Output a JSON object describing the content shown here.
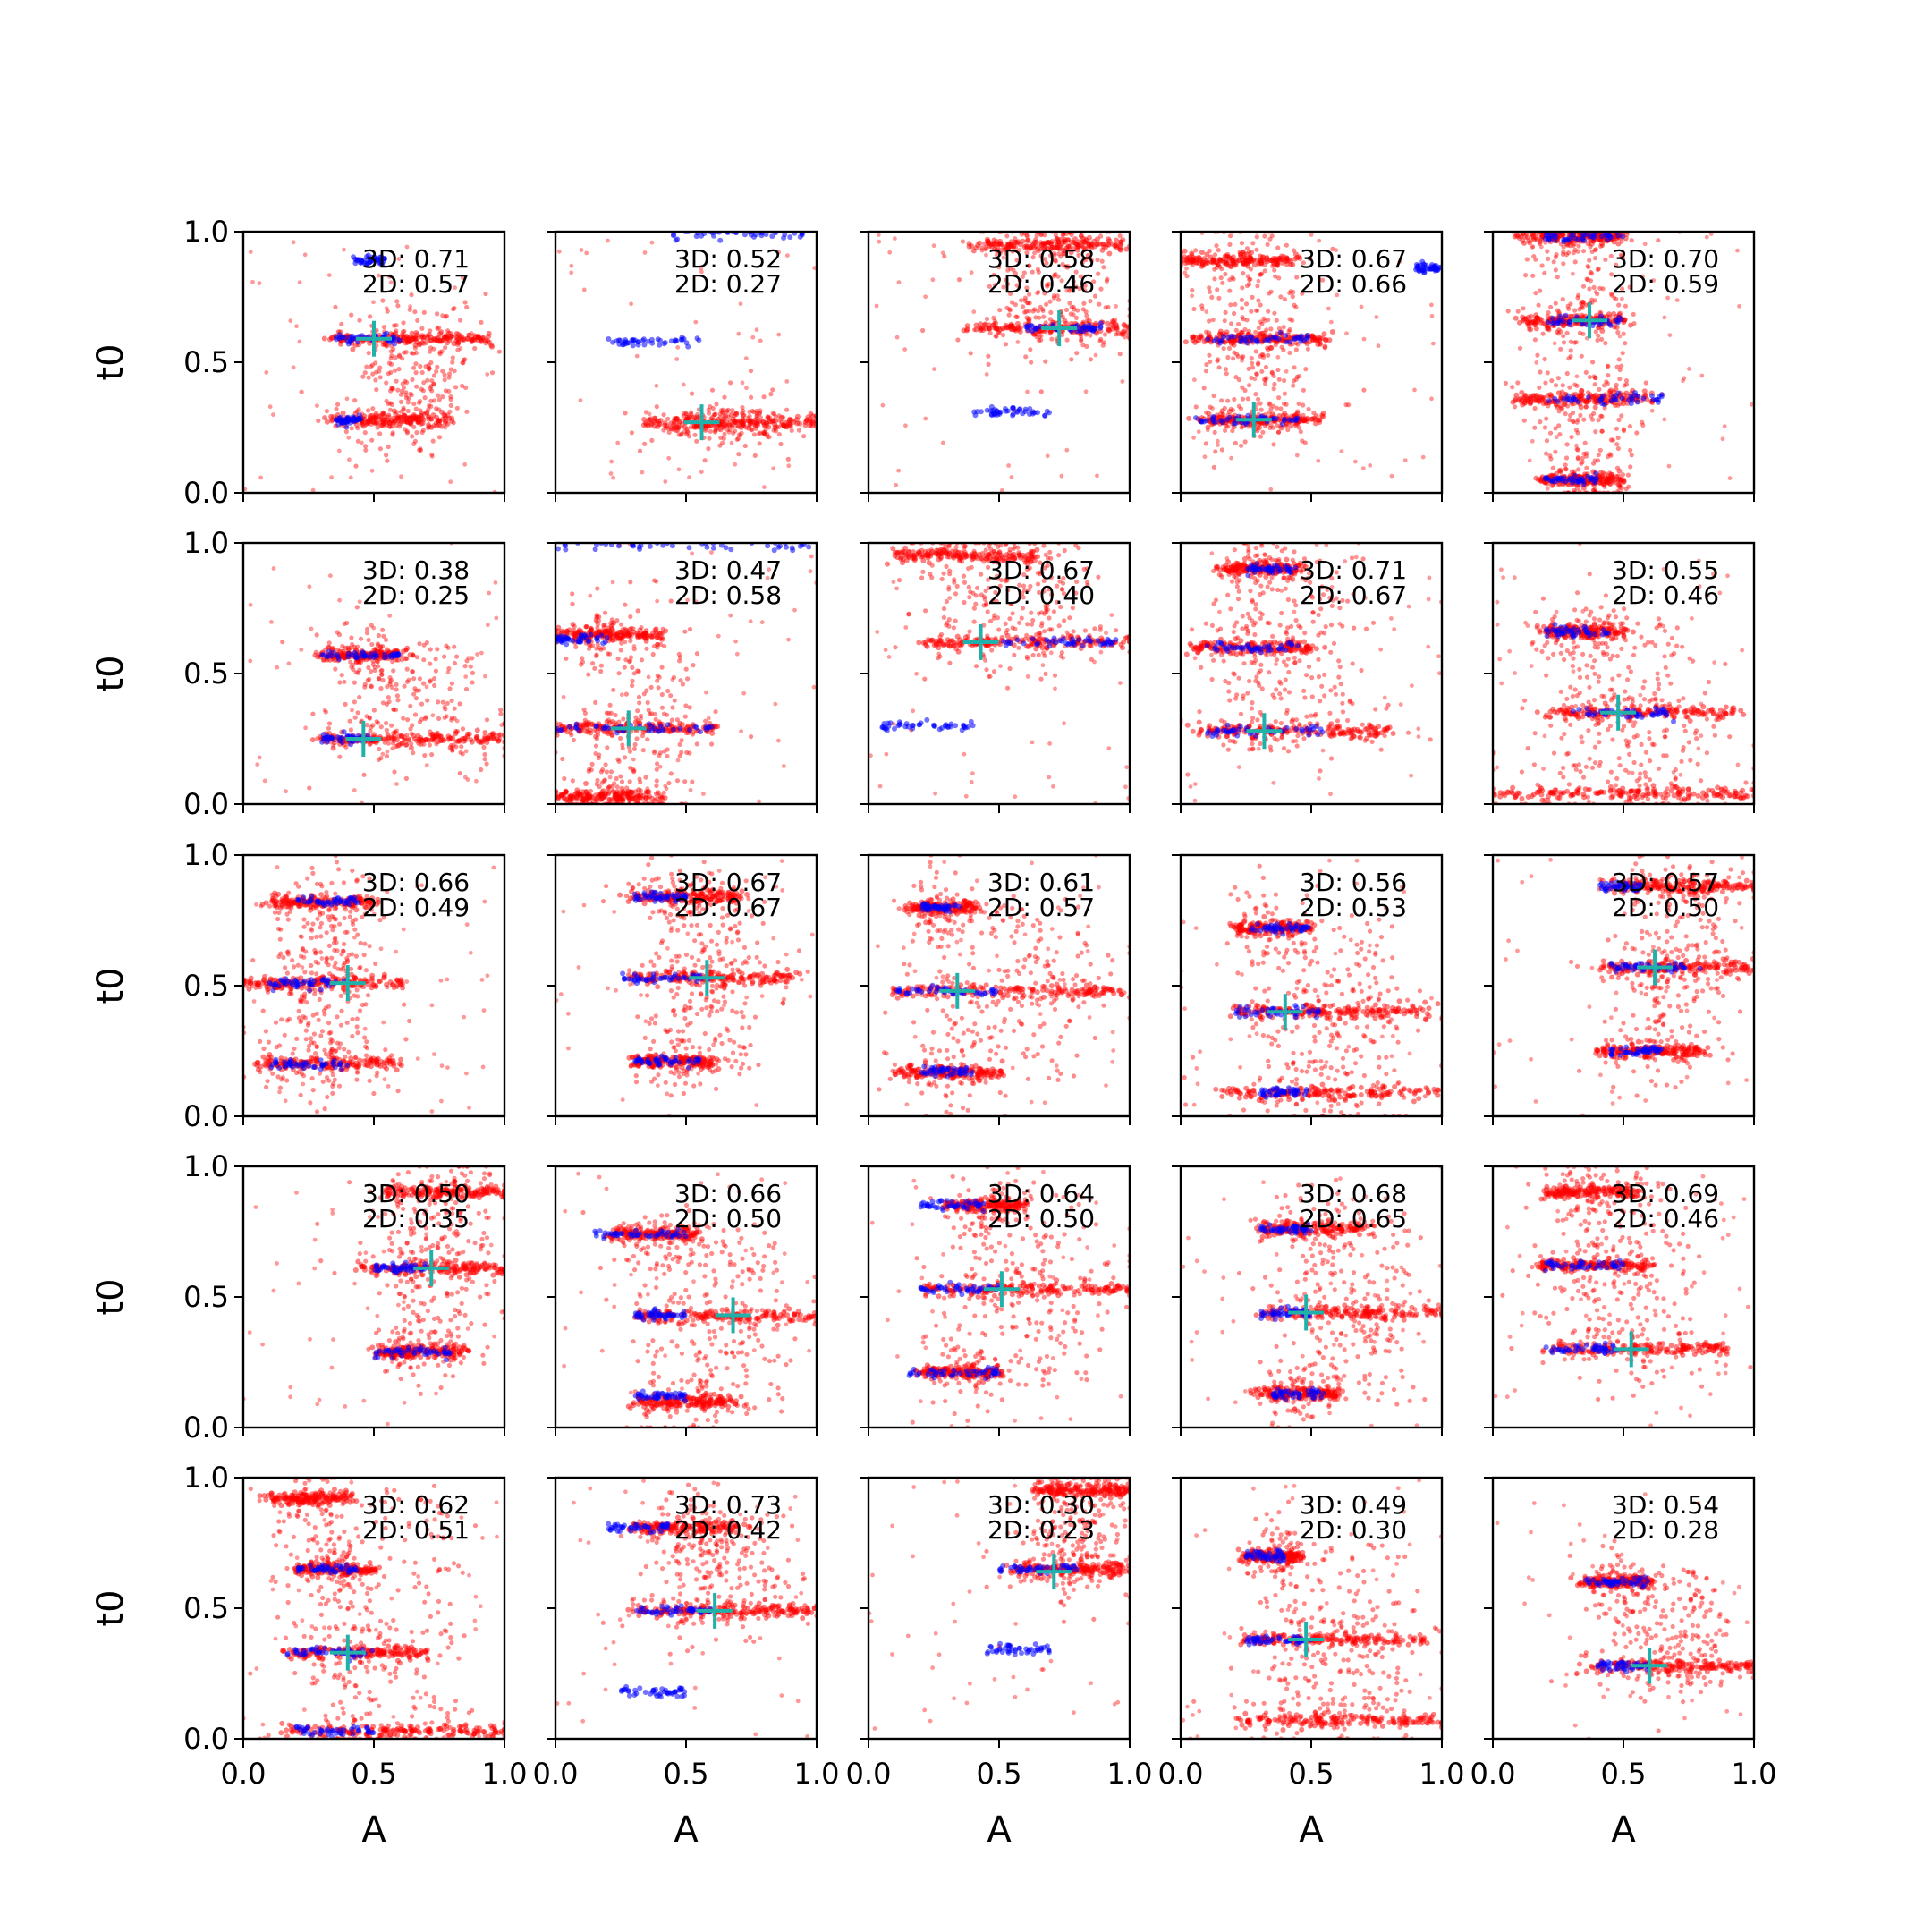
{
  "figure": {
    "xlabel": "A",
    "ylabel": "t0",
    "xlim": [
      0,
      1
    ],
    "ylim": [
      0,
      1
    ],
    "x_ticks": [
      "0.0",
      "0.5",
      "1.0"
    ],
    "y_ticks": [
      "0.0",
      "0.5",
      "1.0"
    ],
    "colors": {
      "red_points": "#ff0000",
      "blue_points": "#0000ff",
      "marker": "#20b2aa"
    }
  },
  "chart_data": [
    {
      "type": "scatter",
      "row": 0,
      "col": 0,
      "annot_3d": "3D: 0.71",
      "annot_2d": "2D: 0.57",
      "marker": {
        "x": 0.5,
        "y": 0.59
      },
      "red_bands": [
        {
          "y": 0.59,
          "x0": 0.35,
          "x1": 0.95
        },
        {
          "y": 0.28,
          "x0": 0.35,
          "x1": 0.8
        }
      ],
      "blue_bands": [
        {
          "y": 0.89,
          "x0": 0.42,
          "x1": 0.55
        },
        {
          "y": 0.59,
          "x0": 0.35,
          "x1": 0.6
        },
        {
          "y": 0.28,
          "x0": 0.35,
          "x1": 0.45
        }
      ]
    },
    {
      "type": "scatter",
      "row": 0,
      "col": 1,
      "annot_3d": "3D: 0.52",
      "annot_2d": "2D: 0.27",
      "marker": {
        "x": 0.56,
        "y": 0.27
      },
      "red_bands": [
        {
          "y": 0.27,
          "x0": 0.35,
          "x1": 1.0
        }
      ],
      "blue_bands": [
        {
          "y": 0.58,
          "x0": 0.2,
          "x1": 0.55
        },
        {
          "y": 0.99,
          "x0": 0.45,
          "x1": 0.98
        }
      ]
    },
    {
      "type": "scatter",
      "row": 0,
      "col": 2,
      "annot_3d": "3D: 0.58",
      "annot_2d": "2D: 0.46",
      "marker": {
        "x": 0.73,
        "y": 0.63
      },
      "red_bands": [
        {
          "y": 0.63,
          "x0": 0.4,
          "x1": 1.0
        },
        {
          "y": 0.95,
          "x0": 0.4,
          "x1": 1.0
        }
      ],
      "blue_bands": [
        {
          "y": 0.31,
          "x0": 0.4,
          "x1": 0.7
        },
        {
          "y": 0.63,
          "x0": 0.6,
          "x1": 0.9
        }
      ]
    },
    {
      "type": "scatter",
      "row": 0,
      "col": 3,
      "annot_3d": "3D: 0.67",
      "annot_2d": "2D: 0.66",
      "marker": {
        "x": 0.28,
        "y": 0.28
      },
      "red_bands": [
        {
          "y": 0.89,
          "x0": 0.0,
          "x1": 0.45
        },
        {
          "y": 0.59,
          "x0": 0.05,
          "x1": 0.55
        },
        {
          "y": 0.28,
          "x0": 0.05,
          "x1": 0.55
        }
      ],
      "blue_bands": [
        {
          "y": 0.59,
          "x0": 0.1,
          "x1": 0.5
        },
        {
          "y": 0.28,
          "x0": 0.05,
          "x1": 0.45
        },
        {
          "y": 0.86,
          "x0": 0.9,
          "x1": 1.0
        }
      ]
    },
    {
      "type": "scatter",
      "row": 0,
      "col": 4,
      "annot_3d": "3D: 0.70",
      "annot_2d": "2D: 0.59",
      "marker": {
        "x": 0.37,
        "y": 0.66
      },
      "red_bands": [
        {
          "y": 0.98,
          "x0": 0.1,
          "x1": 0.5
        },
        {
          "y": 0.66,
          "x0": 0.1,
          "x1": 0.5
        },
        {
          "y": 0.36,
          "x0": 0.1,
          "x1": 0.6
        },
        {
          "y": 0.05,
          "x0": 0.2,
          "x1": 0.5
        }
      ],
      "blue_bands": [
        {
          "y": 0.98,
          "x0": 0.2,
          "x1": 0.5
        },
        {
          "y": 0.66,
          "x0": 0.2,
          "x1": 0.5
        },
        {
          "y": 0.36,
          "x0": 0.2,
          "x1": 0.65
        },
        {
          "y": 0.05,
          "x0": 0.2,
          "x1": 0.4
        }
      ]
    },
    {
      "type": "scatter",
      "row": 1,
      "col": 0,
      "annot_3d": "3D: 0.38",
      "annot_2d": "2D: 0.25",
      "marker": {
        "x": 0.46,
        "y": 0.25
      },
      "red_bands": [
        {
          "y": 0.25,
          "x0": 0.3,
          "x1": 1.0
        },
        {
          "y": 0.57,
          "x0": 0.3,
          "x1": 0.6
        }
      ],
      "blue_bands": [
        {
          "y": 0.57,
          "x0": 0.3,
          "x1": 0.6
        },
        {
          "y": 0.25,
          "x0": 0.3,
          "x1": 0.5
        }
      ]
    },
    {
      "type": "scatter",
      "row": 1,
      "col": 1,
      "annot_3d": "3D: 0.47",
      "annot_2d": "2D: 0.58",
      "marker": {
        "x": 0.28,
        "y": 0.29
      },
      "red_bands": [
        {
          "y": 0.29,
          "x0": 0.0,
          "x1": 0.6
        },
        {
          "y": 0.03,
          "x0": 0.0,
          "x1": 0.4
        },
        {
          "y": 0.65,
          "x0": 0.0,
          "x1": 0.4
        }
      ],
      "blue_bands": [
        {
          "y": 0.99,
          "x0": 0.0,
          "x1": 1.0
        },
        {
          "y": 0.29,
          "x0": 0.0,
          "x1": 0.6
        },
        {
          "y": 0.63,
          "x0": 0.0,
          "x1": 0.2
        }
      ]
    },
    {
      "type": "scatter",
      "row": 1,
      "col": 2,
      "annot_3d": "3D: 0.67",
      "annot_2d": "2D: 0.40",
      "marker": {
        "x": 0.43,
        "y": 0.62
      },
      "red_bands": [
        {
          "y": 0.62,
          "x0": 0.2,
          "x1": 1.0
        },
        {
          "y": 0.95,
          "x0": 0.1,
          "x1": 0.65
        }
      ],
      "blue_bands": [
        {
          "y": 0.3,
          "x0": 0.05,
          "x1": 0.4
        },
        {
          "y": 0.62,
          "x0": 0.5,
          "x1": 0.95
        }
      ]
    },
    {
      "type": "scatter",
      "row": 1,
      "col": 3,
      "annot_3d": "3D: 0.71",
      "annot_2d": "2D: 0.67",
      "marker": {
        "x": 0.32,
        "y": 0.28
      },
      "red_bands": [
        {
          "y": 0.9,
          "x0": 0.15,
          "x1": 0.45
        },
        {
          "y": 0.6,
          "x0": 0.05,
          "x1": 0.5
        },
        {
          "y": 0.28,
          "x0": 0.05,
          "x1": 0.8
        }
      ],
      "blue_bands": [
        {
          "y": 0.9,
          "x0": 0.25,
          "x1": 0.45
        },
        {
          "y": 0.6,
          "x0": 0.1,
          "x1": 0.45
        },
        {
          "y": 0.28,
          "x0": 0.1,
          "x1": 0.55
        }
      ]
    },
    {
      "type": "scatter",
      "row": 1,
      "col": 4,
      "annot_3d": "3D: 0.55",
      "annot_2d": "2D: 0.46",
      "marker": {
        "x": 0.48,
        "y": 0.35
      },
      "red_bands": [
        {
          "y": 0.66,
          "x0": 0.2,
          "x1": 0.5
        },
        {
          "y": 0.35,
          "x0": 0.2,
          "x1": 0.95
        },
        {
          "y": 0.04,
          "x0": 0.0,
          "x1": 1.0
        }
      ],
      "blue_bands": [
        {
          "y": 0.66,
          "x0": 0.2,
          "x1": 0.45
        },
        {
          "y": 0.35,
          "x0": 0.3,
          "x1": 0.7
        }
      ]
    },
    {
      "type": "scatter",
      "row": 2,
      "col": 0,
      "annot_3d": "3D: 0.66",
      "annot_2d": "2D: 0.49",
      "marker": {
        "x": 0.4,
        "y": 0.51
      },
      "red_bands": [
        {
          "y": 0.82,
          "x0": 0.1,
          "x1": 0.5
        },
        {
          "y": 0.51,
          "x0": 0.0,
          "x1": 0.6
        },
        {
          "y": 0.2,
          "x0": 0.05,
          "x1": 0.6
        }
      ],
      "blue_bands": [
        {
          "y": 0.82,
          "x0": 0.2,
          "x1": 0.45
        },
        {
          "y": 0.51,
          "x0": 0.1,
          "x1": 0.4
        },
        {
          "y": 0.2,
          "x0": 0.1,
          "x1": 0.4
        }
      ]
    },
    {
      "type": "scatter",
      "row": 2,
      "col": 1,
      "annot_3d": "3D: 0.67",
      "annot_2d": "2D: 0.67",
      "marker": {
        "x": 0.58,
        "y": 0.53
      },
      "red_bands": [
        {
          "y": 0.84,
          "x0": 0.3,
          "x1": 0.7
        },
        {
          "y": 0.53,
          "x0": 0.3,
          "x1": 0.9
        },
        {
          "y": 0.21,
          "x0": 0.3,
          "x1": 0.6
        }
      ],
      "blue_bands": [
        {
          "y": 0.84,
          "x0": 0.3,
          "x1": 0.5
        },
        {
          "y": 0.53,
          "x0": 0.25,
          "x1": 0.6
        },
        {
          "y": 0.21,
          "x0": 0.3,
          "x1": 0.55
        }
      ]
    },
    {
      "type": "scatter",
      "row": 2,
      "col": 2,
      "annot_3d": "3D: 0.61",
      "annot_2d": "2D: 0.57",
      "marker": {
        "x": 0.34,
        "y": 0.48
      },
      "red_bands": [
        {
          "y": 0.8,
          "x0": 0.15,
          "x1": 0.4
        },
        {
          "y": 0.48,
          "x0": 0.1,
          "x1": 1.0
        },
        {
          "y": 0.17,
          "x0": 0.1,
          "x1": 0.5
        }
      ],
      "blue_bands": [
        {
          "y": 0.8,
          "x0": 0.2,
          "x1": 0.35
        },
        {
          "y": 0.48,
          "x0": 0.1,
          "x1": 0.5
        },
        {
          "y": 0.17,
          "x0": 0.2,
          "x1": 0.4
        }
      ]
    },
    {
      "type": "scatter",
      "row": 2,
      "col": 3,
      "annot_3d": "3D: 0.56",
      "annot_2d": "2D: 0.53",
      "marker": {
        "x": 0.4,
        "y": 0.4
      },
      "red_bands": [
        {
          "y": 0.72,
          "x0": 0.2,
          "x1": 0.5
        },
        {
          "y": 0.4,
          "x0": 0.2,
          "x1": 0.95
        },
        {
          "y": 0.09,
          "x0": 0.15,
          "x1": 1.0
        }
      ],
      "blue_bands": [
        {
          "y": 0.72,
          "x0": 0.25,
          "x1": 0.5
        },
        {
          "y": 0.4,
          "x0": 0.2,
          "x1": 0.55
        },
        {
          "y": 0.09,
          "x0": 0.3,
          "x1": 0.5
        }
      ]
    },
    {
      "type": "scatter",
      "row": 2,
      "col": 4,
      "annot_3d": "3D: 0.57",
      "annot_2d": "2D: 0.50",
      "marker": {
        "x": 0.62,
        "y": 0.57
      },
      "red_bands": [
        {
          "y": 0.88,
          "x0": 0.45,
          "x1": 1.0
        },
        {
          "y": 0.57,
          "x0": 0.4,
          "x1": 1.0
        },
        {
          "y": 0.25,
          "x0": 0.4,
          "x1": 0.8
        }
      ],
      "blue_bands": [
        {
          "y": 0.88,
          "x0": 0.4,
          "x1": 0.6
        },
        {
          "y": 0.57,
          "x0": 0.45,
          "x1": 0.8
        },
        {
          "y": 0.25,
          "x0": 0.45,
          "x1": 0.65
        }
      ]
    },
    {
      "type": "scatter",
      "row": 3,
      "col": 0,
      "annot_3d": "3D: 0.50",
      "annot_2d": "2D: 0.35",
      "marker": {
        "x": 0.72,
        "y": 0.61
      },
      "red_bands": [
        {
          "y": 0.61,
          "x0": 0.45,
          "x1": 1.0
        },
        {
          "y": 0.9,
          "x0": 0.55,
          "x1": 1.0
        },
        {
          "y": 0.29,
          "x0": 0.5,
          "x1": 0.85
        }
      ],
      "blue_bands": [
        {
          "y": 0.29,
          "x0": 0.5,
          "x1": 0.8
        },
        {
          "y": 0.61,
          "x0": 0.5,
          "x1": 0.7
        }
      ]
    },
    {
      "type": "scatter",
      "row": 3,
      "col": 1,
      "annot_3d": "3D: 0.66",
      "annot_2d": "2D: 0.50",
      "marker": {
        "x": 0.68,
        "y": 0.43
      },
      "red_bands": [
        {
          "y": 0.74,
          "x0": 0.2,
          "x1": 0.55
        },
        {
          "y": 0.43,
          "x0": 0.3,
          "x1": 1.0
        },
        {
          "y": 0.1,
          "x0": 0.3,
          "x1": 0.7
        }
      ],
      "blue_bands": [
        {
          "y": 0.74,
          "x0": 0.15,
          "x1": 0.5
        },
        {
          "y": 0.43,
          "x0": 0.3,
          "x1": 0.5
        },
        {
          "y": 0.12,
          "x0": 0.3,
          "x1": 0.5
        }
      ]
    },
    {
      "type": "scatter",
      "row": 3,
      "col": 2,
      "annot_3d": "3D: 0.64",
      "annot_2d": "2D: 0.50",
      "marker": {
        "x": 0.51,
        "y": 0.53
      },
      "red_bands": [
        {
          "y": 0.85,
          "x0": 0.3,
          "x1": 0.6
        },
        {
          "y": 0.53,
          "x0": 0.2,
          "x1": 1.0
        },
        {
          "y": 0.21,
          "x0": 0.2,
          "x1": 0.5
        }
      ],
      "blue_bands": [
        {
          "y": 0.85,
          "x0": 0.2,
          "x1": 0.45
        },
        {
          "y": 0.53,
          "x0": 0.2,
          "x1": 0.5
        },
        {
          "y": 0.21,
          "x0": 0.15,
          "x1": 0.5
        }
      ]
    },
    {
      "type": "scatter",
      "row": 3,
      "col": 3,
      "annot_3d": "3D: 0.68",
      "annot_2d": "2D: 0.65",
      "marker": {
        "x": 0.48,
        "y": 0.44
      },
      "red_bands": [
        {
          "y": 0.76,
          "x0": 0.3,
          "x1": 0.7
        },
        {
          "y": 0.44,
          "x0": 0.3,
          "x1": 1.0
        },
        {
          "y": 0.13,
          "x0": 0.3,
          "x1": 0.6
        }
      ],
      "blue_bands": [
        {
          "y": 0.76,
          "x0": 0.3,
          "x1": 0.5
        },
        {
          "y": 0.44,
          "x0": 0.3,
          "x1": 0.5
        },
        {
          "y": 0.13,
          "x0": 0.35,
          "x1": 0.55
        }
      ]
    },
    {
      "type": "scatter",
      "row": 3,
      "col": 4,
      "annot_3d": "3D: 0.69",
      "annot_2d": "2D: 0.46",
      "marker": {
        "x": 0.53,
        "y": 0.3
      },
      "red_bands": [
        {
          "y": 0.9,
          "x0": 0.2,
          "x1": 0.55
        },
        {
          "y": 0.62,
          "x0": 0.15,
          "x1": 0.6
        },
        {
          "y": 0.3,
          "x0": 0.2,
          "x1": 0.9
        }
      ],
      "blue_bands": [
        {
          "y": 0.62,
          "x0": 0.2,
          "x1": 0.5
        },
        {
          "y": 0.3,
          "x0": 0.2,
          "x1": 0.5
        }
      ]
    },
    {
      "type": "scatter",
      "row": 4,
      "col": 0,
      "annot_3d": "3D: 0.62",
      "annot_2d": "2D: 0.51",
      "marker": {
        "x": 0.4,
        "y": 0.33
      },
      "red_bands": [
        {
          "y": 0.65,
          "x0": 0.2,
          "x1": 0.5
        },
        {
          "y": 0.33,
          "x0": 0.15,
          "x1": 0.7
        },
        {
          "y": 0.03,
          "x0": 0.15,
          "x1": 1.0
        },
        {
          "y": 0.92,
          "x0": 0.1,
          "x1": 0.4
        }
      ],
      "blue_bands": [
        {
          "y": 0.65,
          "x0": 0.2,
          "x1": 0.45
        },
        {
          "y": 0.33,
          "x0": 0.15,
          "x1": 0.5
        },
        {
          "y": 0.03,
          "x0": 0.2,
          "x1": 0.5
        }
      ]
    },
    {
      "type": "scatter",
      "row": 4,
      "col": 1,
      "annot_3d": "3D: 0.73",
      "annot_2d": "2D: 0.42",
      "marker": {
        "x": 0.61,
        "y": 0.49
      },
      "red_bands": [
        {
          "y": 0.81,
          "x0": 0.3,
          "x1": 0.7
        },
        {
          "y": 0.49,
          "x0": 0.3,
          "x1": 1.0
        }
      ],
      "blue_bands": [
        {
          "y": 0.81,
          "x0": 0.2,
          "x1": 0.45
        },
        {
          "y": 0.49,
          "x0": 0.3,
          "x1": 0.6
        },
        {
          "y": 0.18,
          "x0": 0.25,
          "x1": 0.5
        }
      ]
    },
    {
      "type": "scatter",
      "row": 4,
      "col": 2,
      "annot_3d": "3D: 0.30",
      "annot_2d": "2D: 0.23",
      "marker": {
        "x": 0.71,
        "y": 0.64
      },
      "red_bands": [
        {
          "y": 0.95,
          "x0": 0.65,
          "x1": 1.0
        },
        {
          "y": 0.65,
          "x0": 0.55,
          "x1": 1.0
        }
      ],
      "blue_bands": [
        {
          "y": 0.34,
          "x0": 0.45,
          "x1": 0.7
        },
        {
          "y": 0.65,
          "x0": 0.5,
          "x1": 0.8
        }
      ]
    },
    {
      "type": "scatter",
      "row": 4,
      "col": 3,
      "annot_3d": "3D: 0.49",
      "annot_2d": "2D: 0.30",
      "marker": {
        "x": 0.48,
        "y": 0.38
      },
      "red_bands": [
        {
          "y": 0.7,
          "x0": 0.25,
          "x1": 0.45
        },
        {
          "y": 0.38,
          "x0": 0.25,
          "x1": 0.95
        },
        {
          "y": 0.07,
          "x0": 0.2,
          "x1": 1.0
        }
      ],
      "blue_bands": [
        {
          "y": 0.7,
          "x0": 0.25,
          "x1": 0.4
        },
        {
          "y": 0.38,
          "x0": 0.25,
          "x1": 0.5
        }
      ]
    },
    {
      "type": "scatter",
      "row": 4,
      "col": 4,
      "annot_3d": "3D: 0.54",
      "annot_2d": "2D: 0.28",
      "marker": {
        "x": 0.6,
        "y": 0.28
      },
      "red_bands": [
        {
          "y": 0.6,
          "x0": 0.35,
          "x1": 0.6
        },
        {
          "y": 0.28,
          "x0": 0.35,
          "x1": 1.0
        }
      ],
      "blue_bands": [
        {
          "y": 0.6,
          "x0": 0.35,
          "x1": 0.6
        },
        {
          "y": 0.28,
          "x0": 0.4,
          "x1": 0.6
        }
      ]
    }
  ]
}
